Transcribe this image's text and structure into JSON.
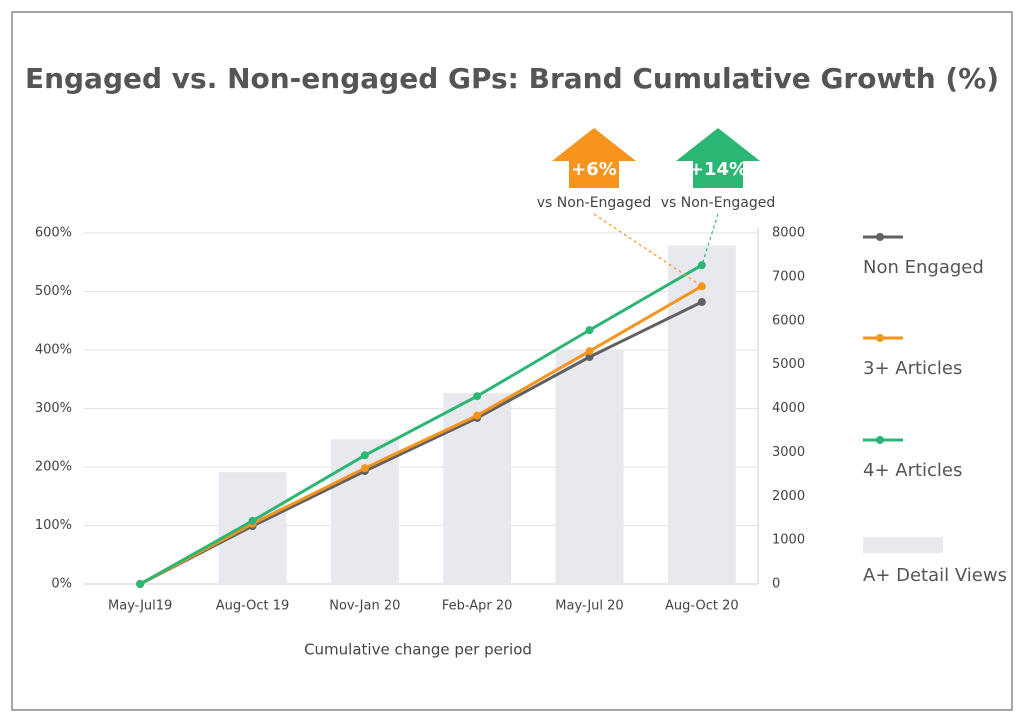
{
  "chart_data": {
    "type": "line",
    "title": "Engaged vs. Non-engaged GPs: Brand Cumulative Growth (%)",
    "x_label": "Cumulative change per period",
    "categories": [
      "May-Jul19",
      "Aug-Oct 19",
      "Nov-Jan 20",
      "Feb-Apr 20",
      "May-Jul 20",
      "Aug-Oct 20"
    ],
    "series": [
      {
        "name": "Non Engaged",
        "color": "#5f6062",
        "values": [
          0,
          99,
          193,
          284,
          388,
          482
        ]
      },
      {
        "name": "3+ Articles",
        "color": "#f7941d",
        "values": [
          0,
          103,
          198,
          288,
          398,
          509
        ]
      },
      {
        "name": "4+ Articles",
        "color": "#2bb673",
        "values": [
          0,
          108,
          220,
          321,
          434,
          545
        ]
      },
      {
        "name": "A+ Detail Views",
        "color": "#e8e9ee",
        "type": "bar",
        "axis": "y2",
        "values": [
          null,
          2550,
          3300,
          4350,
          5350,
          7720
        ]
      }
    ],
    "ylim": [
      0,
      600
    ],
    "yticks": [
      {
        "value": 0,
        "label": "0%"
      },
      {
        "value": 100,
        "label": "100%"
      },
      {
        "value": 200,
        "label": "200%"
      },
      {
        "value": 300,
        "label": "300%"
      },
      {
        "value": 400,
        "label": "400%"
      },
      {
        "value": 500,
        "label": "500%"
      },
      {
        "value": 600,
        "label": "600%"
      }
    ],
    "y2lim": [
      0,
      8000
    ],
    "y2ticks": [
      0,
      1000,
      2000,
      3000,
      4000,
      5000,
      6000,
      7000,
      8000
    ],
    "grid": true,
    "annotations": [
      {
        "text": "+6%",
        "subtext": "vs Non-Engaged",
        "color": "#f7941d"
      },
      {
        "text": "+14%",
        "subtext": "vs Non-Engaged",
        "color": "#2bb673"
      }
    ]
  }
}
